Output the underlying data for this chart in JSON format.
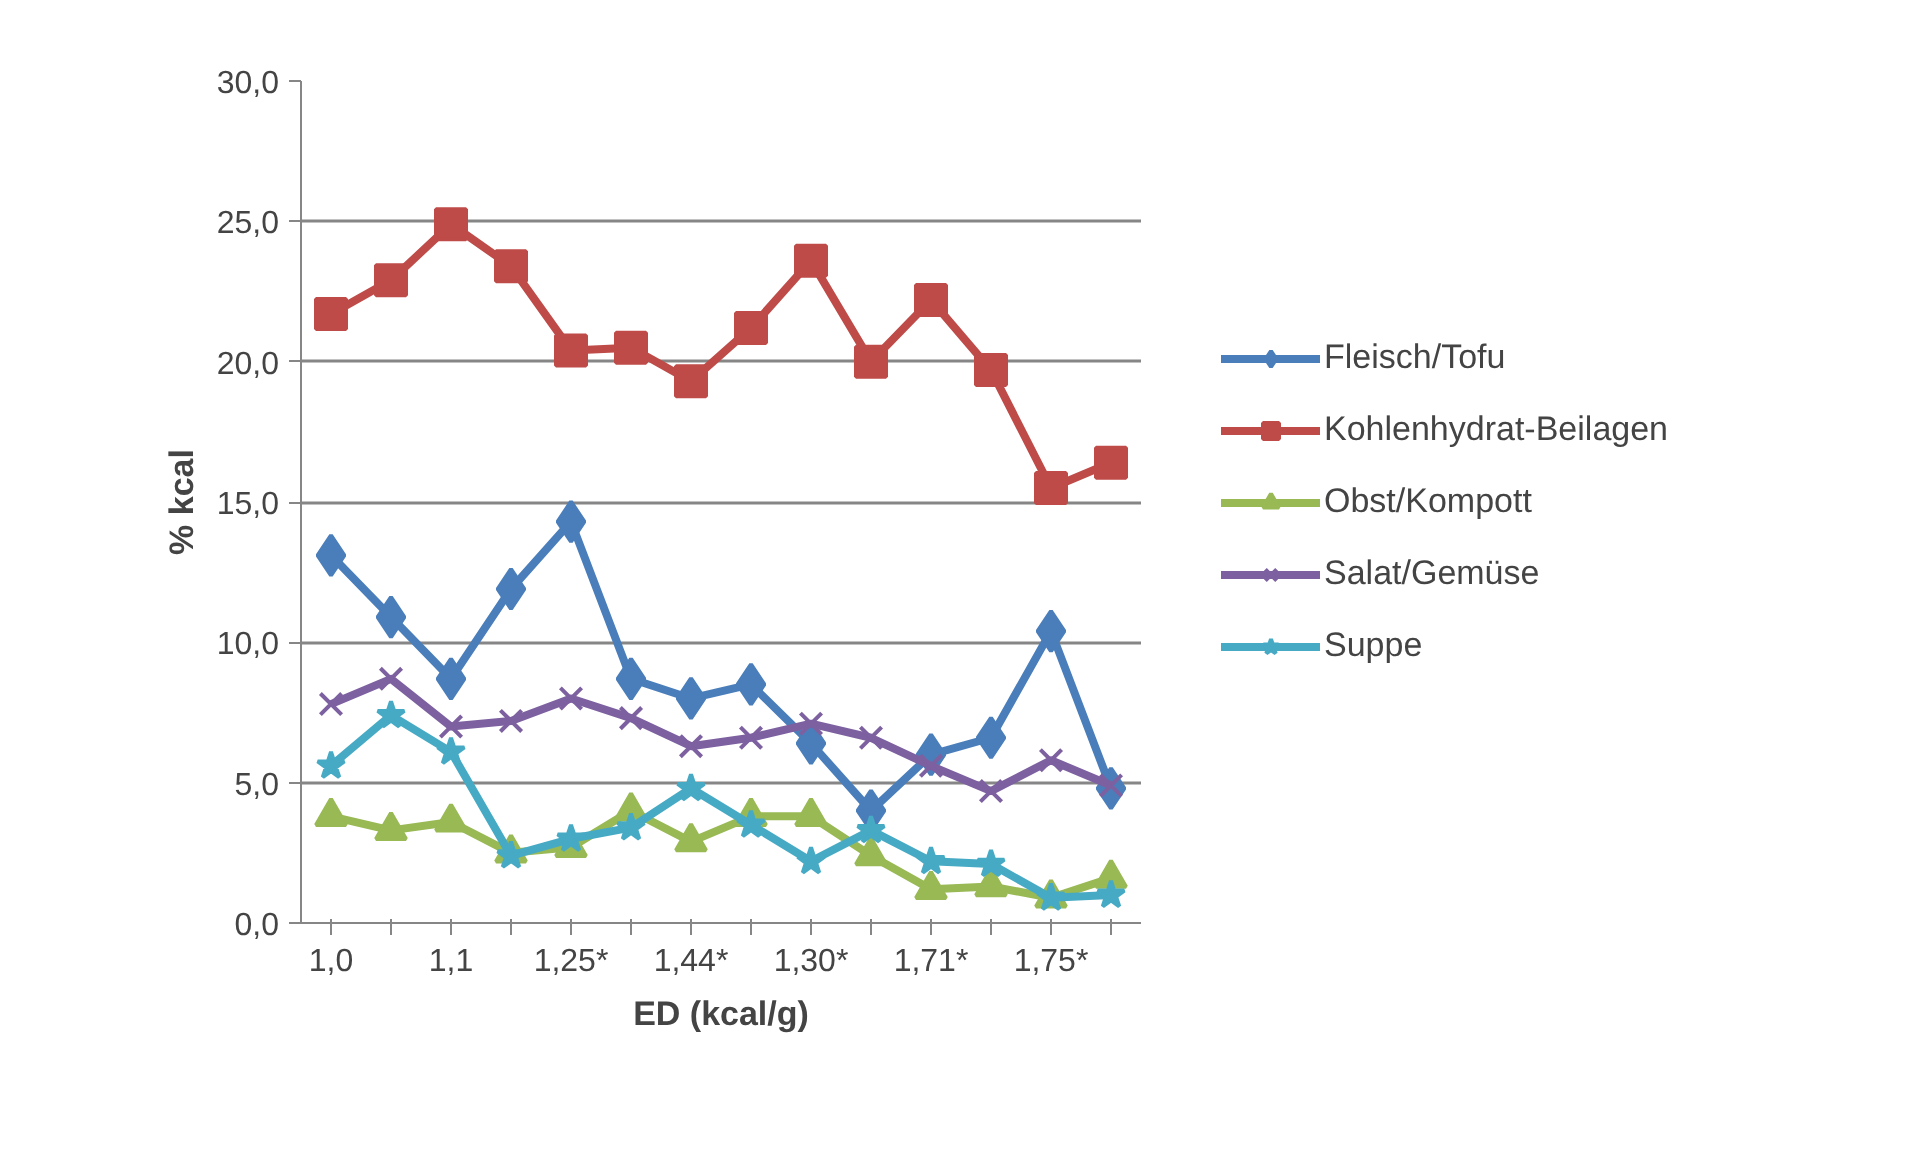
{
  "chart_data": {
    "type": "line",
    "xlabel": "ED (kcal/g)",
    "ylabel": "% kcal",
    "categories": [
      "1,0",
      null,
      "1,1",
      null,
      "1,25*",
      null,
      "1,44*",
      null,
      "1,30*",
      null,
      "1,71*",
      null,
      "1,75*",
      null
    ],
    "ylim": [
      0,
      30
    ],
    "yticks": [
      {
        "value": 0,
        "label": "0,0"
      },
      {
        "value": 5,
        "label": "5,0"
      },
      {
        "value": 10,
        "label": "10,0"
      },
      {
        "value": 15,
        "label": "15,0"
      },
      {
        "value": 20,
        "label": "20,0"
      },
      {
        "value": 25,
        "label": "25,0"
      },
      {
        "value": 30,
        "label": "30,0"
      }
    ],
    "grid": "y",
    "legend": "right",
    "line_style": "solid",
    "series": [
      {
        "name": "Fleisch/Tofu",
        "color": "#4a7ebb",
        "marker": "diamond",
        "values": [
          13.1,
          10.9,
          8.7,
          11.9,
          14.3,
          8.7,
          8.0,
          8.5,
          6.4,
          4.0,
          6.0,
          6.6,
          10.4,
          4.8
        ]
      },
      {
        "name": "Kohlenhydrat-Beilagen",
        "color": "#be4b48",
        "marker": "square",
        "values": [
          21.7,
          22.9,
          24.9,
          23.4,
          20.4,
          20.5,
          19.3,
          21.2,
          23.6,
          20.0,
          22.2,
          19.7,
          15.5,
          16.4
        ]
      },
      {
        "name": "Obst/Kompott",
        "color": "#98b954",
        "marker": "triangle",
        "values": [
          3.8,
          3.3,
          3.6,
          2.5,
          2.7,
          4.0,
          2.9,
          3.8,
          3.8,
          2.4,
          1.2,
          1.3,
          0.9,
          1.6
        ]
      },
      {
        "name": "Salat/Gemüse",
        "color": "#7d60a0",
        "marker": "cross",
        "values": [
          7.8,
          8.7,
          7.0,
          7.2,
          8.0,
          7.3,
          6.3,
          6.6,
          7.1,
          6.6,
          5.6,
          4.7,
          5.8,
          4.9
        ]
      },
      {
        "name": "Suppe",
        "color": "#46aac5",
        "marker": "star",
        "values": [
          5.6,
          7.4,
          6.1,
          2.4,
          3.0,
          3.4,
          4.8,
          3.5,
          2.2,
          3.3,
          2.2,
          2.1,
          0.9,
          1.0
        ]
      }
    ]
  }
}
